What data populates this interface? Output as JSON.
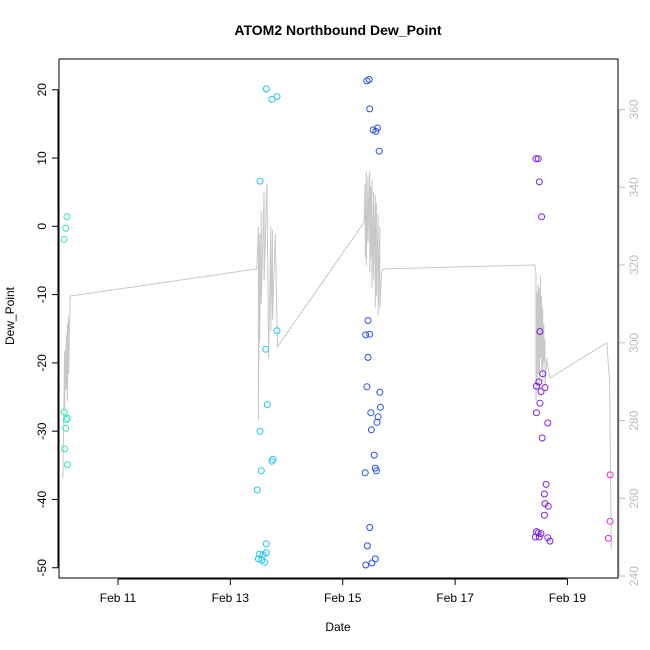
{
  "chart_data": {
    "type": "scatter",
    "title": "ATOM2 Northbound Dew_Point",
    "xlabel": "Date",
    "ylabel": "Dew_Point",
    "x_unit": "days (February)",
    "xlim": [
      9.95,
      19.9
    ],
    "ylim": [
      -51.5,
      24.5
    ],
    "y2lim": [
      239.5,
      373
    ],
    "x_ticks": [
      {
        "value": 11,
        "label": "Feb 11"
      },
      {
        "value": 13,
        "label": "Feb 13"
      },
      {
        "value": 15,
        "label": "Feb 15"
      },
      {
        "value": 17,
        "label": "Feb 17"
      },
      {
        "value": 19,
        "label": "Feb 19"
      }
    ],
    "y_ticks": [
      {
        "value": 20,
        "label": "20"
      },
      {
        "value": 10,
        "label": "10"
      },
      {
        "value": 0,
        "label": "0"
      },
      {
        "value": -10,
        "label": "-10"
      },
      {
        "value": -20,
        "label": "-20"
      },
      {
        "value": -30,
        "label": "-30"
      },
      {
        "value": -40,
        "label": "-40"
      },
      {
        "value": -50,
        "label": "-50"
      }
    ],
    "y2_ticks": [
      {
        "value": 360,
        "label": "360"
      },
      {
        "value": 340,
        "label": "340"
      },
      {
        "value": 320,
        "label": "320"
      },
      {
        "value": 300,
        "label": "300"
      },
      {
        "value": 280,
        "label": "280"
      },
      {
        "value": 260,
        "label": "260"
      },
      {
        "value": 240,
        "label": "240"
      }
    ],
    "colors": {
      "line": "#c8c8c8",
      "axis": "#000000",
      "right_axis": "#bdbdbd"
    },
    "points": [
      {
        "x": 10.09,
        "y": 1.4,
        "color": "#33e6bf"
      },
      {
        "x": 10.07,
        "y": -0.3,
        "color": "#33e6bf"
      },
      {
        "x": 10.04,
        "y": -1.9,
        "color": "#33e6bf"
      },
      {
        "x": 10.04,
        "y": -27.2,
        "color": "#33e6bf"
      },
      {
        "x": 10.1,
        "y": -28.1,
        "color": "#33e6bf"
      },
      {
        "x": 10.08,
        "y": -28.3,
        "color": "#33e6bf"
      },
      {
        "x": 10.07,
        "y": -29.6,
        "color": "#33e6bf"
      },
      {
        "x": 10.05,
        "y": -32.6,
        "color": "#33e6bf"
      },
      {
        "x": 10.1,
        "y": -34.9,
        "color": "#33e6bf"
      },
      {
        "x": 13.64,
        "y": 20.1,
        "color": "#22c4f0"
      },
      {
        "x": 13.83,
        "y": 19.0,
        "color": "#22c4f0"
      },
      {
        "x": 13.74,
        "y": 18.6,
        "color": "#22c4f0"
      },
      {
        "x": 13.53,
        "y": 6.6,
        "color": "#22c4f0"
      },
      {
        "x": 13.83,
        "y": -15.3,
        "color": "#22c4f0"
      },
      {
        "x": 13.63,
        "y": -18.0,
        "color": "#22c4f0"
      },
      {
        "x": 13.66,
        "y": -26.1,
        "color": "#22c4f0"
      },
      {
        "x": 13.53,
        "y": -30.0,
        "color": "#22c4f0"
      },
      {
        "x": 13.76,
        "y": -34.1,
        "color": "#22c4f0"
      },
      {
        "x": 13.74,
        "y": -34.4,
        "color": "#22c4f0"
      },
      {
        "x": 13.55,
        "y": -35.8,
        "color": "#22c4f0"
      },
      {
        "x": 13.48,
        "y": -38.6,
        "color": "#22c4f0"
      },
      {
        "x": 13.64,
        "y": -46.5,
        "color": "#22c4f0"
      },
      {
        "x": 13.64,
        "y": -47.8,
        "color": "#22c4f0"
      },
      {
        "x": 13.52,
        "y": -48.0,
        "color": "#22c4f0"
      },
      {
        "x": 13.58,
        "y": -48.1,
        "color": "#22c4f0"
      },
      {
        "x": 13.5,
        "y": -48.7,
        "color": "#22c4f0"
      },
      {
        "x": 13.56,
        "y": -48.9,
        "color": "#22c4f0"
      },
      {
        "x": 13.61,
        "y": -49.2,
        "color": "#22c4f0"
      },
      {
        "x": 15.47,
        "y": 21.5,
        "color": "#2a4fe8"
      },
      {
        "x": 15.43,
        "y": 21.3,
        "color": "#2a4fe8"
      },
      {
        "x": 15.48,
        "y": 17.2,
        "color": "#2a4fe8"
      },
      {
        "x": 15.62,
        "y": 14.4,
        "color": "#2a4fe8"
      },
      {
        "x": 15.54,
        "y": 14.1,
        "color": "#2a4fe8"
      },
      {
        "x": 15.59,
        "y": 13.9,
        "color": "#2a4fe8"
      },
      {
        "x": 15.65,
        "y": 11.0,
        "color": "#2a4fe8"
      },
      {
        "x": 15.45,
        "y": -13.8,
        "color": "#2a4fe8"
      },
      {
        "x": 15.48,
        "y": -15.8,
        "color": "#2a4fe8"
      },
      {
        "x": 15.41,
        "y": -15.9,
        "color": "#2a4fe8"
      },
      {
        "x": 15.45,
        "y": -19.2,
        "color": "#2a4fe8"
      },
      {
        "x": 15.43,
        "y": -23.5,
        "color": "#2a4fe8"
      },
      {
        "x": 15.66,
        "y": -24.3,
        "color": "#2a4fe8"
      },
      {
        "x": 15.67,
        "y": -26.5,
        "color": "#2a4fe8"
      },
      {
        "x": 15.5,
        "y": -27.3,
        "color": "#2a4fe8"
      },
      {
        "x": 15.63,
        "y": -27.9,
        "color": "#2a4fe8"
      },
      {
        "x": 15.61,
        "y": -28.7,
        "color": "#2a4fe8"
      },
      {
        "x": 15.51,
        "y": -29.8,
        "color": "#2a4fe8"
      },
      {
        "x": 15.56,
        "y": -33.5,
        "color": "#2a4fe8"
      },
      {
        "x": 15.58,
        "y": -35.4,
        "color": "#2a4fe8"
      },
      {
        "x": 15.6,
        "y": -35.8,
        "color": "#2a4fe8"
      },
      {
        "x": 15.4,
        "y": -36.1,
        "color": "#2a4fe8"
      },
      {
        "x": 15.48,
        "y": -44.1,
        "color": "#2a4fe8"
      },
      {
        "x": 15.44,
        "y": -46.8,
        "color": "#2a4fe8"
      },
      {
        "x": 15.58,
        "y": -48.7,
        "color": "#2a4fe8"
      },
      {
        "x": 15.52,
        "y": -49.3,
        "color": "#2a4fe8"
      },
      {
        "x": 15.41,
        "y": -49.6,
        "color": "#2a4fe8"
      },
      {
        "x": 18.44,
        "y": 9.9,
        "color": "#7a22e0"
      },
      {
        "x": 18.48,
        "y": 9.9,
        "color": "#7a22e0"
      },
      {
        "x": 18.5,
        "y": 6.5,
        "color": "#7a22e0"
      },
      {
        "x": 18.54,
        "y": 1.4,
        "color": "#7a22e0"
      },
      {
        "x": 18.51,
        "y": -15.4,
        "color": "#7a22e0"
      },
      {
        "x": 18.56,
        "y": -21.6,
        "color": "#7a22e0"
      },
      {
        "x": 18.49,
        "y": -22.8,
        "color": "#7a22e0"
      },
      {
        "x": 18.45,
        "y": -23.4,
        "color": "#7a22e0"
      },
      {
        "x": 18.6,
        "y": -23.6,
        "color": "#7a22e0"
      },
      {
        "x": 18.53,
        "y": -24.2,
        "color": "#7a22e0"
      },
      {
        "x": 18.51,
        "y": -25.9,
        "color": "#7a22e0"
      },
      {
        "x": 18.45,
        "y": -27.3,
        "color": "#7a22e0"
      },
      {
        "x": 18.65,
        "y": -28.8,
        "color": "#7a22e0"
      },
      {
        "x": 18.55,
        "y": -31.0,
        "color": "#7a22e0"
      },
      {
        "x": 18.62,
        "y": -37.8,
        "color": "#7a22e0"
      },
      {
        "x": 18.59,
        "y": -39.2,
        "color": "#7a22e0"
      },
      {
        "x": 18.6,
        "y": -40.6,
        "color": "#7a22e0"
      },
      {
        "x": 18.66,
        "y": -41.0,
        "color": "#7a22e0"
      },
      {
        "x": 18.59,
        "y": -42.3,
        "color": "#7a22e0"
      },
      {
        "x": 18.45,
        "y": -44.7,
        "color": "#7a22e0"
      },
      {
        "x": 18.48,
        "y": -44.9,
        "color": "#7a22e0"
      },
      {
        "x": 18.53,
        "y": -45.0,
        "color": "#7a22e0"
      },
      {
        "x": 18.43,
        "y": -45.5,
        "color": "#7a22e0"
      },
      {
        "x": 18.5,
        "y": -45.5,
        "color": "#7a22e0"
      },
      {
        "x": 18.65,
        "y": -45.6,
        "color": "#7a22e0"
      },
      {
        "x": 18.69,
        "y": -46.1,
        "color": "#7a22e0"
      },
      {
        "x": 19.76,
        "y": -36.4,
        "color": "#d92ee0"
      },
      {
        "x": 19.76,
        "y": -43.2,
        "color": "#d92ee0"
      },
      {
        "x": 19.73,
        "y": -45.7,
        "color": "#d92ee0"
      }
    ],
    "line_series": {
      "name": "right axis series",
      "axis": "y2",
      "x": [
        10.02,
        10.05,
        10.05,
        10.08,
        10.08,
        10.1,
        10.1,
        10.12,
        10.12,
        10.15,
        13.47,
        13.5,
        13.5,
        13.52,
        13.52,
        13.55,
        13.55,
        13.6,
        13.6,
        13.65,
        13.68,
        13.72,
        13.72,
        13.75,
        13.75,
        13.8,
        13.84,
        15.38,
        15.4,
        15.4,
        15.42,
        15.42,
        15.45,
        15.45,
        15.48,
        15.48,
        15.5,
        15.5,
        15.52,
        15.52,
        15.55,
        15.55,
        15.58,
        15.58,
        15.6,
        15.6,
        15.63,
        15.63,
        15.66,
        15.66,
        15.69,
        15.72,
        18.42,
        18.44,
        18.44,
        18.46,
        18.46,
        18.48,
        18.48,
        18.5,
        18.5,
        18.52,
        18.52,
        18.54,
        18.54,
        18.56,
        18.56,
        18.58,
        18.58,
        18.6,
        18.6,
        18.63,
        18.66,
        18.69,
        19.7,
        19.75,
        19.78
      ],
      "y2": [
        265,
        298,
        283,
        302,
        288,
        305,
        285,
        307,
        292,
        312,
        319,
        330,
        280,
        328,
        300,
        334,
        310,
        339,
        316,
        341,
        296,
        330,
        303,
        329,
        306,
        328,
        299,
        331,
        341,
        322,
        344,
        320,
        343,
        326,
        344,
        318,
        340,
        322,
        342,
        314,
        339,
        316,
        338,
        309,
        336,
        312,
        333,
        307,
        330,
        309,
        318,
        319,
        320,
        318,
        285,
        313,
        289,
        315,
        292,
        314,
        288,
        317,
        296,
        312,
        293,
        309,
        290,
        305,
        295,
        301,
        289,
        296,
        293,
        291,
        300,
        290,
        247
      ]
    }
  }
}
